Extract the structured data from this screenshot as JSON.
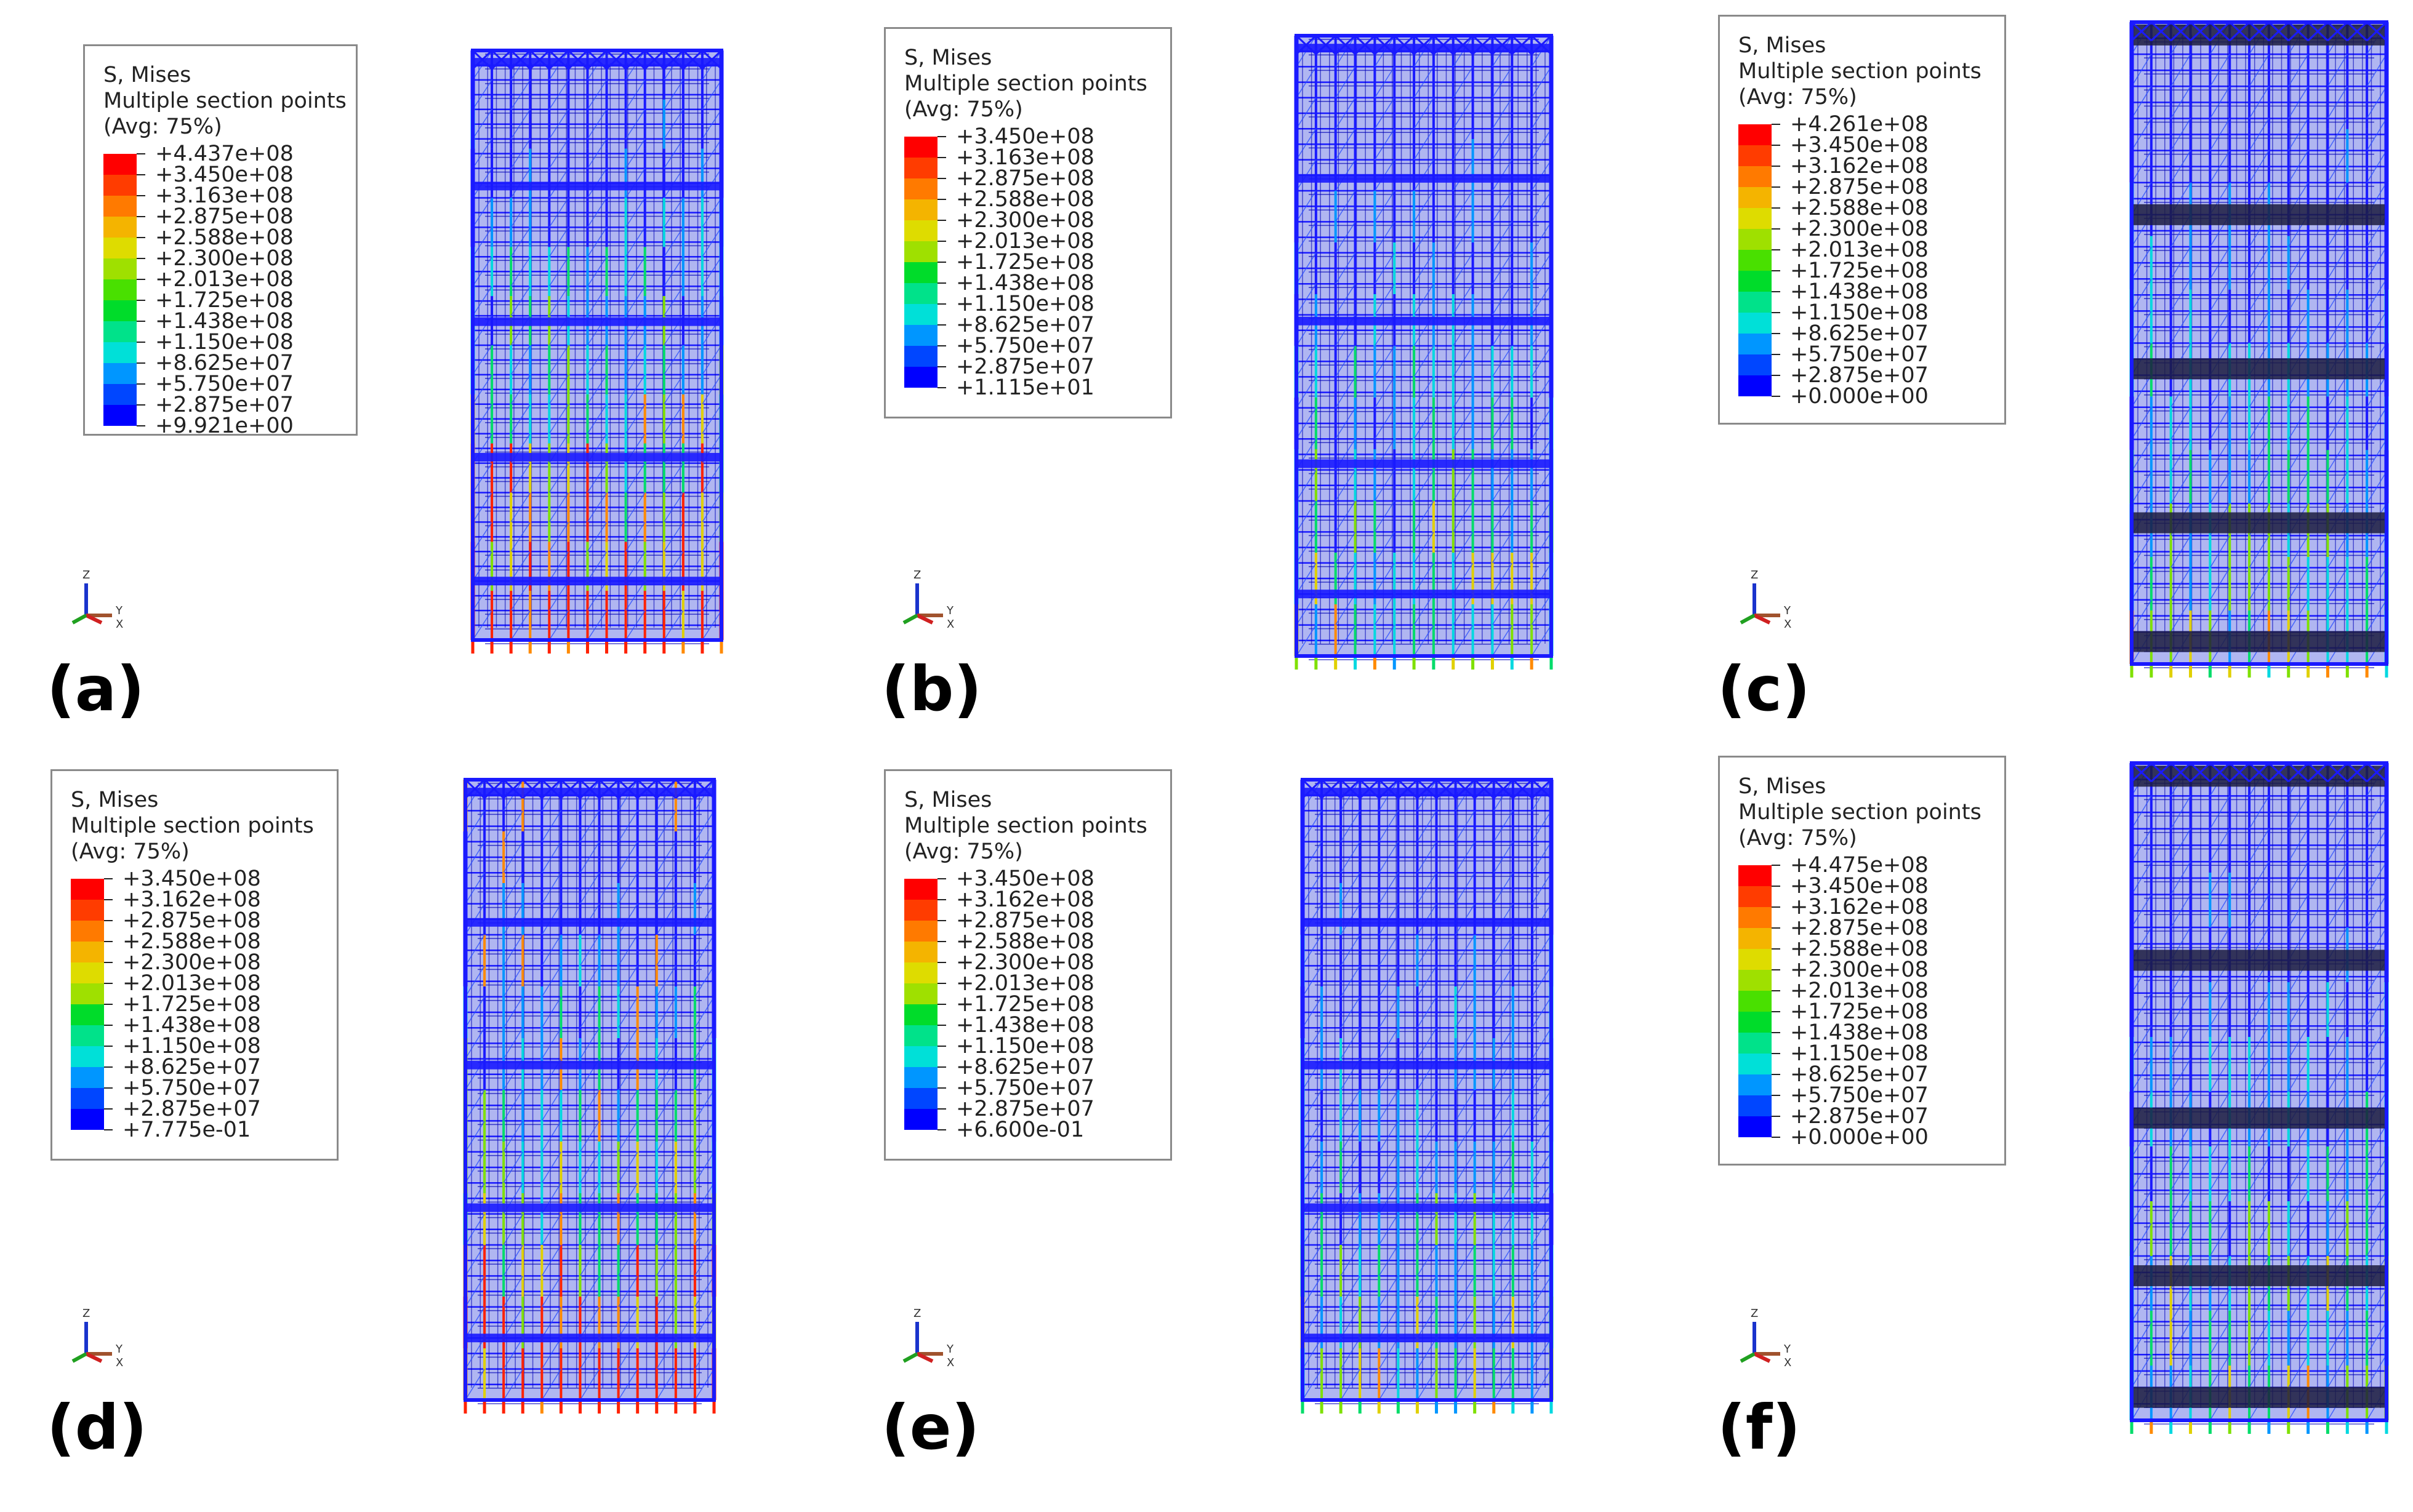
{
  "legend_title": "S, Mises",
  "legend_subtitle": "Multiple section points",
  "legend_avg": "(Avg: 75%)",
  "colors": [
    "#ff0000",
    "#ff3c00",
    "#ff7a00",
    "#f4b400",
    "#dedc00",
    "#9fe000",
    "#49e000",
    "#00dc2a",
    "#00e28a",
    "#00e0d8",
    "#0096ff",
    "#0046ff",
    "#0000ff"
  ],
  "panels": [
    {
      "label": "(a)",
      "values": [
        "+4.437e+08",
        "+3.450e+08",
        "+3.163e+08",
        "+2.875e+08",
        "+2.588e+08",
        "+2.300e+08",
        "+2.013e+08",
        "+1.725e+08",
        "+1.438e+08",
        "+1.150e+08",
        "+8.625e+07",
        "+5.750e+07",
        "+2.875e+07",
        "+9.921e+00"
      ],
      "triad": [
        "Z",
        "Y",
        "X"
      ]
    },
    {
      "label": "(b)",
      "values": [
        "+3.450e+08",
        "+3.163e+08",
        "+2.875e+08",
        "+2.588e+08",
        "+2.300e+08",
        "+2.013e+08",
        "+1.725e+08",
        "+1.438e+08",
        "+1.150e+08",
        "+8.625e+07",
        "+5.750e+07",
        "+2.875e+07",
        "+1.115e+01"
      ],
      "triad": [
        "Z",
        "Y",
        "X"
      ]
    },
    {
      "label": "(c)",
      "values": [
        "+4.261e+08",
        "+3.450e+08",
        "+3.162e+08",
        "+2.875e+08",
        "+2.588e+08",
        "+2.300e+08",
        "+2.013e+08",
        "+1.725e+08",
        "+1.438e+08",
        "+1.150e+08",
        "+8.625e+07",
        "+5.750e+07",
        "+2.875e+07",
        "+0.000e+00"
      ],
      "triad": [
        "Z",
        "Y",
        "X"
      ]
    },
    {
      "label": "(d)",
      "values": [
        "+3.450e+08",
        "+3.162e+08",
        "+2.875e+08",
        "+2.588e+08",
        "+2.300e+08",
        "+2.013e+08",
        "+1.725e+08",
        "+1.438e+08",
        "+1.150e+08",
        "+8.625e+07",
        "+5.750e+07",
        "+2.875e+07",
        "+7.775e-01"
      ],
      "triad": [
        "Z",
        "Y",
        "X"
      ]
    },
    {
      "label": "(e)",
      "values": [
        "+3.450e+08",
        "+3.162e+08",
        "+2.875e+08",
        "+2.588e+08",
        "+2.300e+08",
        "+2.013e+08",
        "+1.725e+08",
        "+1.438e+08",
        "+1.150e+08",
        "+8.625e+07",
        "+5.750e+07",
        "+2.875e+07",
        "+6.600e-01"
      ],
      "triad": [
        "Z",
        "Y",
        "X"
      ]
    },
    {
      "label": "(f)",
      "values": [
        "+4.475e+08",
        "+3.450e+08",
        "+3.162e+08",
        "+2.875e+08",
        "+2.588e+08",
        "+2.300e+08",
        "+2.013e+08",
        "+1.725e+08",
        "+1.438e+08",
        "+1.150e+08",
        "+8.625e+07",
        "+5.750e+07",
        "+2.875e+07",
        "+0.000e+00"
      ],
      "triad": [
        "Z",
        "Y",
        "X"
      ]
    }
  ]
}
